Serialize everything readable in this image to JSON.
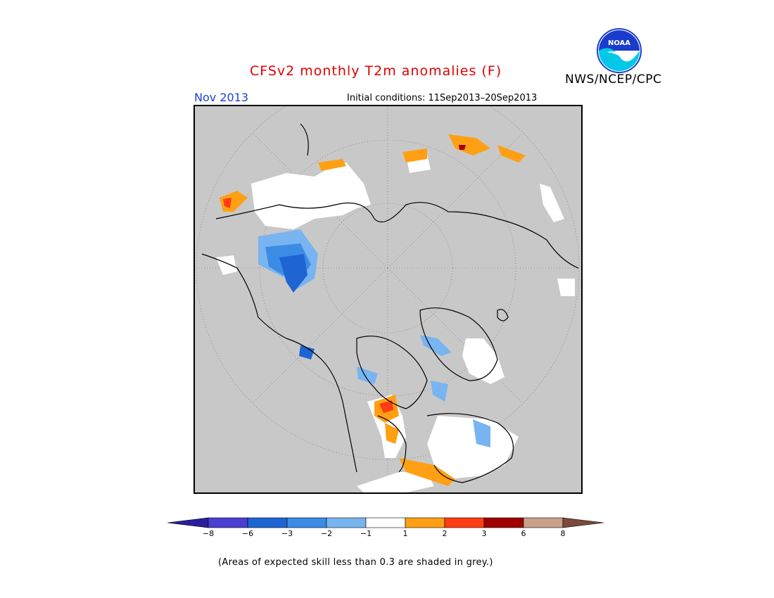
{
  "header": {
    "title": "CFSv2 monthly T2m anomalies (F)",
    "month": "Nov 2013",
    "initial_conditions": "Initial conditions: 11Sep2013–20Sep2013",
    "agency": "NWS/NCEP/CPC",
    "logo_text": "NOAA"
  },
  "colorbar": {
    "labels": [
      "−8",
      "−6",
      "−3",
      "−2",
      "−1",
      "1",
      "2",
      "3",
      "6",
      "8"
    ],
    "colors": [
      "#2a1e9e",
      "#4a3fd0",
      "#1e64d2",
      "#3c8ce6",
      "#78b4f0",
      "#ffffff",
      "#ffa014",
      "#ff3c14",
      "#a00000",
      "#c8a08c",
      "#7a4a3a"
    ]
  },
  "footnote": "(Areas of expected skill less than 0.3 are shaded in grey.)",
  "map": {
    "colors": {
      "background": "#c8c8c8",
      "no_signal": "#ffffff",
      "coast": "#000000",
      "grid": "#808080"
    }
  }
}
